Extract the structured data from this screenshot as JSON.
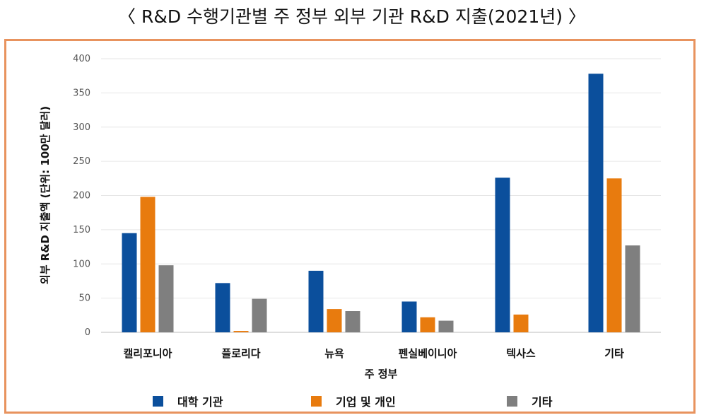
{
  "title": "〈 R&D 수행기관별 주 정부 외부 기관 R&D 지출(2021년) 〉",
  "chart_data": {
    "type": "bar",
    "xlabel": "주 정부",
    "ylabel": "외부 R&D 지출액 (단위: 100만 달러)",
    "ylim": [
      0,
      400
    ],
    "yticks": [
      0,
      50,
      100,
      150,
      200,
      250,
      300,
      350,
      400
    ],
    "grid": true,
    "legend_position": "bottom",
    "categories": [
      "캘리포니아",
      "플로리다",
      "뉴욕",
      "펜실베이니아",
      "텍사스",
      "기타"
    ],
    "series": [
      {
        "name": "대학 기관",
        "color": "#0b4f9c",
        "values": [
          145,
          72,
          90,
          45,
          226,
          378
        ]
      },
      {
        "name": "기업 및 개인",
        "color": "#e87b0e",
        "values": [
          198,
          2,
          34,
          22,
          26,
          225
        ]
      },
      {
        "name": "기타",
        "color": "#7f7f7f",
        "values": [
          98,
          49,
          31,
          17,
          0,
          127
        ]
      }
    ]
  }
}
